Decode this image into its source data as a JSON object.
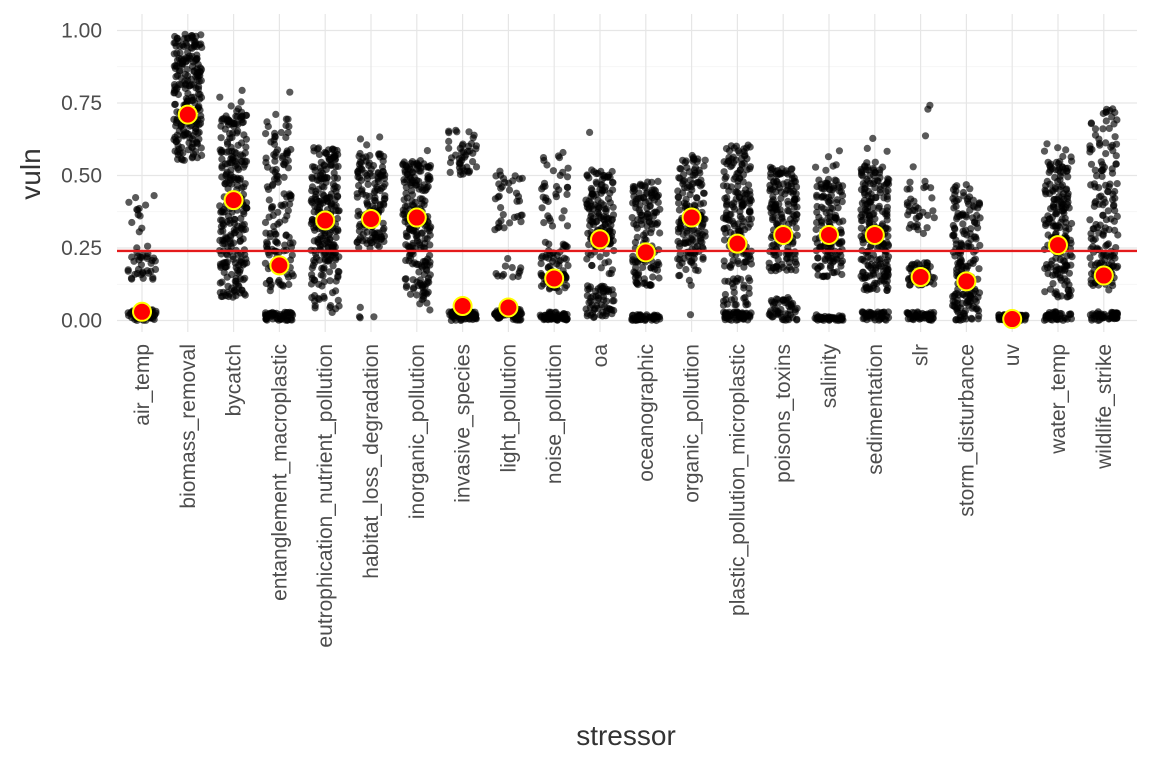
{
  "chart_data": {
    "type": "scatter",
    "xlabel": "stressor",
    "ylabel": "vuln",
    "ylim": [
      -0.04,
      1.04
    ],
    "y_ticks": [
      0.0,
      0.25,
      0.5,
      0.75,
      1.0
    ],
    "y_tick_labels": [
      "0.00",
      "0.25",
      "0.50",
      "0.75",
      "1.00"
    ],
    "grid": true,
    "reference_line": {
      "y": 0.24,
      "color": "#e41a1c"
    },
    "categories": [
      "air_temp",
      "biomass_removal",
      "bycatch",
      "entanglement_macroplastic",
      "eutrophication_nutrient_pollution",
      "habitat_loss_degradation",
      "inorganic_pollution",
      "invasive_species",
      "light_pollution",
      "noise_pollution",
      "oa",
      "oceanographic",
      "organic_pollution",
      "plastic_pollution_microplastic",
      "poisons_toxins",
      "salinity",
      "sedimentation",
      "slr",
      "storm_disturbance",
      "uv",
      "water_temp",
      "wildlife_strike"
    ],
    "series": [
      {
        "type": "jitter",
        "color": "#000000",
        "opacity": 0.65
      },
      {
        "type": "mean",
        "fill": "#ff0000",
        "stroke": "#ffff00",
        "values": [
          0.03,
          0.71,
          0.415,
          0.19,
          0.345,
          0.35,
          0.355,
          0.05,
          0.045,
          0.145,
          0.28,
          0.235,
          0.355,
          0.265,
          0.295,
          0.295,
          0.295,
          0.15,
          0.135,
          0.005,
          0.26,
          0.155
        ]
      }
    ],
    "distribution": [
      {
        "bands": [
          [
            0.0,
            0.04,
            60
          ],
          [
            0.13,
            0.26,
            35
          ],
          [
            0.3,
            0.44,
            12
          ]
        ]
      },
      {
        "bands": [
          [
            0.55,
            0.99,
            220
          ]
        ]
      },
      {
        "bands": [
          [
            0.08,
            0.3,
            90
          ],
          [
            0.3,
            0.72,
            160
          ],
          [
            0.72,
            0.8,
            6
          ]
        ]
      },
      {
        "bands": [
          [
            0.0,
            0.03,
            50
          ],
          [
            0.1,
            0.3,
            60
          ],
          [
            0.3,
            0.65,
            70
          ],
          [
            0.65,
            0.79,
            8
          ]
        ]
      },
      {
        "bands": [
          [
            0.02,
            0.2,
            40
          ],
          [
            0.2,
            0.6,
            190
          ]
        ]
      },
      {
        "bands": [
          [
            0.0,
            0.05,
            4
          ],
          [
            0.25,
            0.58,
            140
          ],
          [
            0.58,
            0.64,
            3
          ]
        ]
      },
      {
        "bands": [
          [
            0.01,
            0.08,
            5
          ],
          [
            0.08,
            0.55,
            200
          ],
          [
            0.55,
            0.61,
            2
          ]
        ]
      },
      {
        "bands": [
          [
            0.0,
            0.03,
            60
          ],
          [
            0.5,
            0.66,
            45
          ]
        ]
      },
      {
        "bands": [
          [
            0.0,
            0.04,
            60
          ],
          [
            0.15,
            0.22,
            12
          ],
          [
            0.3,
            0.52,
            35
          ]
        ]
      },
      {
        "bands": [
          [
            0.0,
            0.03,
            55
          ],
          [
            0.1,
            0.27,
            60
          ],
          [
            0.3,
            0.58,
            35
          ]
        ]
      },
      {
        "bands": [
          [
            0.01,
            0.12,
            60
          ],
          [
            0.15,
            0.25,
            15
          ],
          [
            0.25,
            0.52,
            130
          ],
          [
            0.6,
            0.65,
            1
          ]
        ]
      },
      {
        "bands": [
          [
            0.0,
            0.02,
            45
          ],
          [
            0.12,
            0.48,
            140
          ]
        ]
      },
      {
        "bands": [
          [
            0.02,
            0.02,
            1
          ],
          [
            0.12,
            0.2,
            10
          ],
          [
            0.2,
            0.57,
            150
          ]
        ]
      },
      {
        "bands": [
          [
            0.0,
            0.03,
            50
          ],
          [
            0.05,
            0.15,
            30
          ],
          [
            0.18,
            0.61,
            160
          ]
        ]
      },
      {
        "bands": [
          [
            0.0,
            0.08,
            50
          ],
          [
            0.17,
            0.53,
            170
          ]
        ]
      },
      {
        "bands": [
          [
            0.0,
            0.02,
            40
          ],
          [
            0.15,
            0.49,
            140
          ],
          [
            0.5,
            0.59,
            6
          ]
        ]
      },
      {
        "bands": [
          [
            0.0,
            0.03,
            40
          ],
          [
            0.1,
            0.55,
            210
          ],
          [
            0.55,
            0.65,
            3
          ]
        ]
      },
      {
        "bands": [
          [
            0.0,
            0.03,
            50
          ],
          [
            0.12,
            0.2,
            50
          ],
          [
            0.3,
            0.55,
            35
          ],
          [
            0.6,
            0.75,
            3
          ]
        ]
      },
      {
        "bands": [
          [
            0.0,
            0.1,
            60
          ],
          [
            0.1,
            0.47,
            120
          ]
        ]
      },
      {
        "bands": [
          [
            0.0,
            0.02,
            80
          ]
        ]
      },
      {
        "bands": [
          [
            0.0,
            0.03,
            40
          ],
          [
            0.08,
            0.55,
            180
          ],
          [
            0.55,
            0.63,
            6
          ]
        ]
      },
      {
        "bands": [
          [
            0.0,
            0.03,
            45
          ],
          [
            0.1,
            0.2,
            40
          ],
          [
            0.2,
            0.73,
            120
          ]
        ]
      }
    ]
  }
}
